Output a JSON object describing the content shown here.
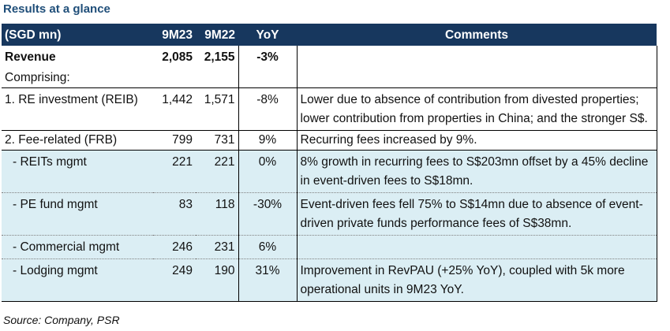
{
  "title": "Results at a glance",
  "header": {
    "label": "(SGD mn)",
    "col1": "9M23",
    "col2": "9M22",
    "yoy": "YoY",
    "comments": "Comments"
  },
  "rows": [
    {
      "label": "Revenue",
      "v1": "2,085",
      "v2": "2,155",
      "yoy": "-3%",
      "comment": ""
    },
    {
      "label": "Comprising:",
      "v1": "",
      "v2": "",
      "yoy": "",
      "comment": ""
    },
    {
      "label": "1. RE investment (REIB)",
      "v1": "1,442",
      "v2": "1,571",
      "yoy": "-8%",
      "comment": "Lower due to absence of contribution from divested properties; lower contribution from properties in China; and the stronger S$."
    },
    {
      "label": "2. Fee-related (FRB)",
      "v1": "799",
      "v2": "731",
      "yoy": "9%",
      "comment": "Recurring fees increased by 9%."
    },
    {
      "label": "- REITs mgmt",
      "v1": "221",
      "v2": "221",
      "yoy": "0%",
      "comment": "8% growth in recurring fees to S$203mn offset by a 45% decline in event-driven fees to S$18mn."
    },
    {
      "label": "- PE fund mgmt",
      "v1": "83",
      "v2": "118",
      "yoy": "-30%",
      "comment": "Event-driven fees fell 75% to S$14mn due to absence of event-driven private funds performance fees of S$38mn."
    },
    {
      "label": "- Commercial mgmt",
      "v1": "246",
      "v2": "231",
      "yoy": "6%",
      "comment": ""
    },
    {
      "label": "- Lodging mgmt",
      "v1": "249",
      "v2": "190",
      "yoy": "31%",
      "comment": "Improvement in RevPAU (+25% YoY), coupled with 5k more operational units in 9M23 YoY."
    }
  ],
  "source": "Source: Company, PSR"
}
